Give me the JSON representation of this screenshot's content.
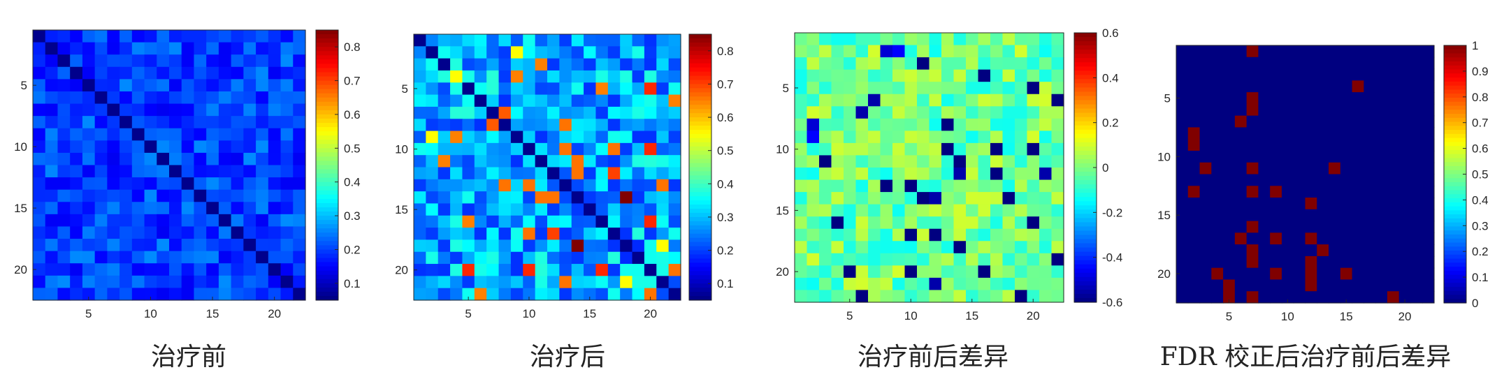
{
  "chart_data": [
    {
      "type": "heatmap",
      "title": "治疗前",
      "size": 22,
      "colormap": "jet",
      "clim": [
        0.05,
        0.85
      ],
      "colorbar_ticks": [
        "0.1",
        "0.2",
        "0.3",
        "0.4",
        "0.5",
        "0.6",
        "0.7",
        "0.8"
      ],
      "colorbar_values": [
        0.1,
        0.2,
        0.3,
        0.4,
        0.5,
        0.6,
        0.7,
        0.8
      ],
      "yticks": [
        "5",
        "10",
        "15",
        "20"
      ],
      "xticks": [
        "5",
        "10",
        "15",
        "20"
      ],
      "base": 0.2,
      "variation": 0.06,
      "seed": 11,
      "diagonal": 0.06,
      "highlights": []
    },
    {
      "type": "heatmap",
      "title": "治疗后",
      "size": 22,
      "colormap": "jet",
      "clim": [
        0.05,
        0.85
      ],
      "colorbar_ticks": [
        "0.1",
        "0.2",
        "0.3",
        "0.4",
        "0.5",
        "0.6",
        "0.7",
        "0.8"
      ],
      "colorbar_values": [
        0.1,
        0.2,
        0.3,
        0.4,
        0.5,
        0.6,
        0.7,
        0.8
      ],
      "yticks": [
        "5",
        "10",
        "15",
        "20"
      ],
      "xticks": [
        "5",
        "10",
        "15",
        "20"
      ],
      "base": 0.28,
      "variation": 0.1,
      "seed": 23,
      "diagonal": 0.06,
      "highlights": [
        {
          "r": 3,
          "c": 3,
          "v": 0.55
        },
        {
          "r": 3,
          "c": 8,
          "v": 0.65
        },
        {
          "r": 4,
          "c": 15,
          "v": 0.65
        },
        {
          "r": 7,
          "c": 6,
          "v": 0.68
        },
        {
          "r": 8,
          "c": 1,
          "v": 0.55
        },
        {
          "r": 10,
          "c": 2,
          "v": 0.65
        },
        {
          "r": 10,
          "c": 13,
          "v": 0.66
        },
        {
          "r": 12,
          "c": 7,
          "v": 0.66
        },
        {
          "r": 12,
          "c": 9,
          "v": 0.66
        },
        {
          "r": 13,
          "c": 11,
          "v": 0.66
        },
        {
          "r": 16,
          "c": 9,
          "v": 0.66
        },
        {
          "r": 16,
          "c": 11,
          "v": 0.7
        },
        {
          "r": 17,
          "c": 13,
          "v": 0.85
        },
        {
          "r": 19,
          "c": 4,
          "v": 0.72
        },
        {
          "r": 19,
          "c": 9,
          "v": 0.72
        },
        {
          "r": 19,
          "c": 15,
          "v": 0.72
        },
        {
          "r": 20,
          "c": 12,
          "v": 0.66
        },
        {
          "r": 21,
          "c": 5,
          "v": 0.65
        },
        {
          "r": 21,
          "c": 19,
          "v": 0.66
        },
        {
          "r": 17,
          "c": 20,
          "v": 0.55
        }
      ]
    },
    {
      "type": "heatmap",
      "title": "治疗前后差异",
      "size": 22,
      "colormap": "jet",
      "clim": [
        -0.6,
        0.6
      ],
      "colorbar_ticks": [
        "0.6",
        "0.4",
        "0.2",
        "0",
        "-0.2",
        "-0.4",
        "-0.6"
      ],
      "colorbar_values": [
        0.6,
        0.4,
        0.2,
        0,
        -0.2,
        -0.4,
        -0.6
      ],
      "yticks": [
        "5",
        "10",
        "15",
        "20"
      ],
      "xticks": [
        "5",
        "10",
        "15",
        "20"
      ],
      "base": -0.02,
      "variation": 0.12,
      "seed": 37,
      "diagonal": -0.02,
      "highlights": [
        {
          "r": 3,
          "c": 15,
          "v": -0.6
        },
        {
          "r": 6,
          "c": 5,
          "v": -0.55
        },
        {
          "r": 7,
          "c": 1,
          "v": -0.5
        },
        {
          "r": 8,
          "c": 1,
          "v": -0.45
        },
        {
          "r": 10,
          "c": 2,
          "v": -0.6
        },
        {
          "r": 10,
          "c": 13,
          "v": -0.6
        },
        {
          "r": 12,
          "c": 7,
          "v": -0.6
        },
        {
          "r": 12,
          "c": 9,
          "v": -0.6
        },
        {
          "r": 13,
          "c": 11,
          "v": -0.55
        },
        {
          "r": 16,
          "c": 9,
          "v": -0.6
        },
        {
          "r": 16,
          "c": 11,
          "v": -0.6
        },
        {
          "r": 17,
          "c": 13,
          "v": -0.6
        },
        {
          "r": 19,
          "c": 4,
          "v": -0.6
        },
        {
          "r": 19,
          "c": 9,
          "v": -0.6
        },
        {
          "r": 19,
          "c": 15,
          "v": -0.6
        },
        {
          "r": 20,
          "c": 11,
          "v": -0.55
        },
        {
          "r": 21,
          "c": 5,
          "v": -0.6
        },
        {
          "r": 21,
          "c": 18,
          "v": -0.6
        }
      ]
    },
    {
      "type": "heatmap",
      "title": "FDR 校正后治疗前后差异",
      "size": 22,
      "colormap": "jet",
      "clim": [
        0,
        1
      ],
      "colorbar_ticks": [
        "1",
        "0.9",
        "0.8",
        "0.7",
        "0.6",
        "0.5",
        "0.4",
        "0.3",
        "0.2",
        "0.1",
        "0"
      ],
      "colorbar_values": [
        1,
        0.9,
        0.8,
        0.7,
        0.6,
        0.5,
        0.4,
        0.3,
        0.2,
        0.1,
        0
      ],
      "yticks": [
        "5",
        "10",
        "15",
        "20"
      ],
      "xticks": [
        "5",
        "10",
        "15",
        "20"
      ],
      "binary": true,
      "ones": [
        [
          0,
          6
        ],
        [
          3,
          15
        ],
        [
          4,
          6
        ],
        [
          5,
          6
        ],
        [
          6,
          5
        ],
        [
          7,
          1
        ],
        [
          8,
          1
        ],
        [
          10,
          2
        ],
        [
          10,
          6
        ],
        [
          10,
          13
        ],
        [
          12,
          1
        ],
        [
          12,
          6
        ],
        [
          12,
          8
        ],
        [
          13,
          11
        ],
        [
          15,
          6
        ],
        [
          16,
          5
        ],
        [
          16,
          8
        ],
        [
          16,
          11
        ],
        [
          17,
          6
        ],
        [
          17,
          12
        ],
        [
          18,
          6
        ],
        [
          18,
          11
        ],
        [
          19,
          3
        ],
        [
          19,
          8
        ],
        [
          19,
          11
        ],
        [
          19,
          14
        ],
        [
          20,
          4
        ],
        [
          20,
          11
        ],
        [
          21,
          4
        ],
        [
          21,
          6
        ],
        [
          21,
          18
        ]
      ]
    }
  ]
}
